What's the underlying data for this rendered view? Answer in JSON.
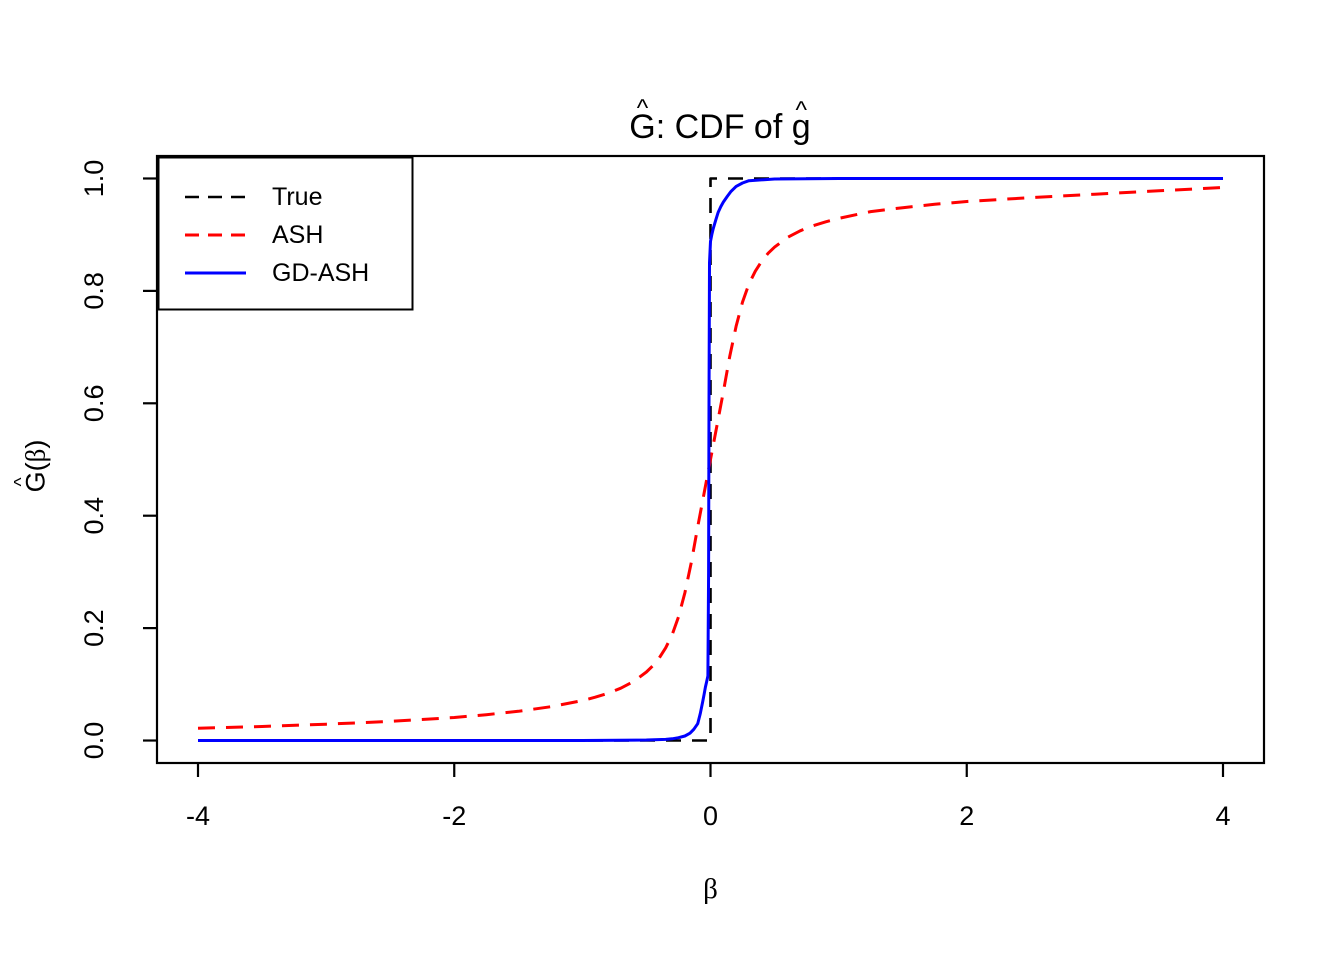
{
  "display": {
    "title": {
      "hat1": "^",
      "base1": "G",
      "mid": ": CDF of ",
      "hat2": "^",
      "base2": "g"
    },
    "y_axis_label": {
      "hat": "^",
      "base": "G",
      "open": "(",
      "beta": "β",
      "close": ")"
    },
    "x_axis_label": {
      "beta": "β"
    }
  },
  "colors": {
    "background": "#FFFFFF",
    "axis": "#000000",
    "true_line": "#000000",
    "ash_line": "#FF0000",
    "gdash_line": "#0000FF",
    "legend_fill": "#FFFFFF"
  },
  "chart_data": {
    "type": "line",
    "title": "Ĝ: CDF of ĝ",
    "xlabel": "β",
    "ylabel": "Ĝ(β)",
    "xlim": [
      -4,
      4
    ],
    "ylim": [
      0,
      1
    ],
    "grid": false,
    "x_ticks": [
      -4,
      -2,
      0,
      2,
      4
    ],
    "x_tick_labels": [
      "-4",
      "-2",
      "0",
      "2",
      "4"
    ],
    "y_ticks": [
      0,
      0.2,
      0.4,
      0.6,
      0.8,
      1
    ],
    "y_tick_labels": [
      "0.0",
      "0.2",
      "0.4",
      "0.6",
      "0.8",
      "1.0"
    ],
    "legend": {
      "position": "topleft",
      "entries": [
        {
          "label": "True",
          "color": "#000000",
          "style": "dashed"
        },
        {
          "label": "ASH",
          "color": "#FF0000",
          "style": "dashed"
        },
        {
          "label": "GD-ASH",
          "color": "#0000FF",
          "style": "solid"
        }
      ]
    },
    "series": [
      {
        "name": "True",
        "color": "#000000",
        "style": "dashed",
        "description": "step function: 0 for beta<0, jumps to 1 at beta=0",
        "x": [
          -4,
          0,
          0,
          4
        ],
        "y": [
          0,
          0,
          1,
          1
        ]
      },
      {
        "name": "ASH",
        "color": "#FF0000",
        "style": "dashed",
        "x": [
          -4,
          -3.5,
          -3,
          -2.5,
          -2,
          -1.75,
          -1.5,
          -1.25,
          -1,
          -0.9,
          -0.8,
          -0.7,
          -0.6,
          -0.5,
          -0.45,
          -0.4,
          -0.35,
          -0.3,
          -0.25,
          -0.2,
          -0.15,
          -0.1,
          -0.05,
          0,
          0.05,
          0.1,
          0.15,
          0.2,
          0.25,
          0.3,
          0.35,
          0.4,
          0.45,
          0.5,
          0.6,
          0.7,
          0.8,
          0.9,
          1,
          1.25,
          1.5,
          1.75,
          2,
          2.5,
          3,
          3.5,
          4
        ],
        "y": [
          0.022,
          0.025,
          0.029,
          0.034,
          0.041,
          0.046,
          0.052,
          0.06,
          0.071,
          0.077,
          0.084,
          0.093,
          0.105,
          0.122,
          0.133,
          0.147,
          0.165,
          0.188,
          0.22,
          0.263,
          0.317,
          0.38,
          0.44,
          0.5,
          0.56,
          0.62,
          0.683,
          0.737,
          0.78,
          0.812,
          0.835,
          0.853,
          0.867,
          0.878,
          0.895,
          0.907,
          0.916,
          0.923,
          0.929,
          0.941,
          0.948,
          0.954,
          0.959,
          0.966,
          0.972,
          0.978,
          0.984
        ]
      },
      {
        "name": "GD-ASH",
        "color": "#0000FF",
        "style": "solid",
        "x": [
          -4,
          -1,
          -0.5,
          -0.35,
          -0.3,
          -0.25,
          -0.2,
          -0.16,
          -0.13,
          -0.1,
          -0.08,
          -0.06,
          -0.05,
          -0.04,
          -0.03,
          -0.025,
          -0.02,
          -0.015,
          -0.012,
          -0.008,
          0,
          0.01,
          0.02,
          0.04,
          0.06,
          0.08,
          0.1,
          0.13,
          0.16,
          0.2,
          0.25,
          0.3,
          0.5,
          1,
          4
        ],
        "y": [
          0,
          0,
          0.001,
          0.002,
          0.003,
          0.005,
          0.008,
          0.013,
          0.02,
          0.03,
          0.048,
          0.07,
          0.082,
          0.095,
          0.105,
          0.11,
          0.115,
          0.3,
          0.6,
          0.85,
          0.888,
          0.9,
          0.91,
          0.925,
          0.94,
          0.95,
          0.958,
          0.968,
          0.977,
          0.986,
          0.992,
          0.996,
          0.999,
          1,
          1
        ]
      }
    ]
  }
}
